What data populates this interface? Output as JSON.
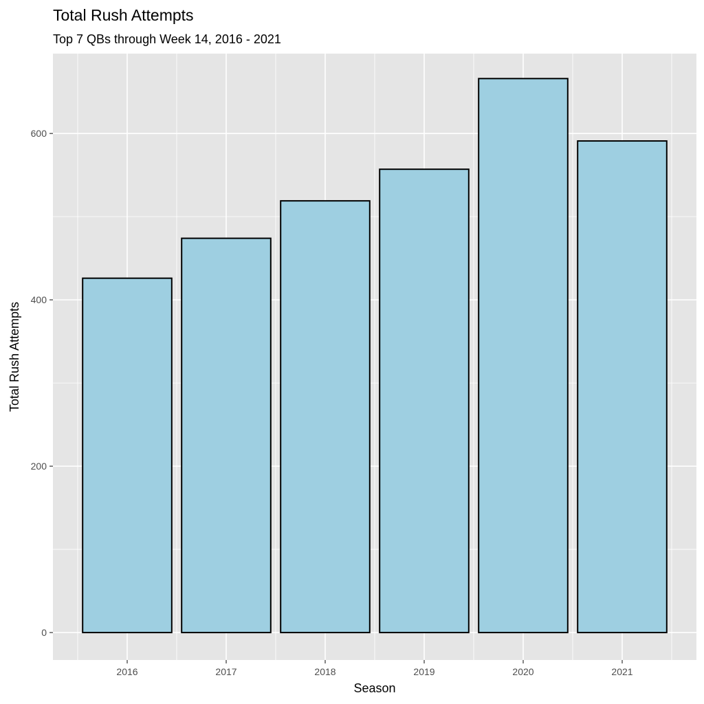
{
  "chart_data": {
    "type": "bar",
    "title": "Total Rush Attempts",
    "subtitle": "Top 7 QBs through Week 14, 2016 - 2021",
    "xlabel": "Season",
    "ylabel": "Total Rush Attempts",
    "categories": [
      "2016",
      "2017",
      "2018",
      "2019",
      "2020",
      "2021"
    ],
    "values": [
      426,
      474,
      519,
      557,
      666,
      591
    ],
    "ylim": [
      -33,
      696
    ],
    "y_ticks": [
      0,
      200,
      400,
      600
    ],
    "y_tick_labels": [
      "0",
      "200",
      "400",
      "600"
    ],
    "y_minor_ticks": [
      100,
      300,
      500
    ],
    "grid": true,
    "legend": "none",
    "colors": {
      "bar_fill": "#9ecfe1",
      "bar_stroke": "#000000",
      "panel_background": "#e5e5e5",
      "grid": "#ffffff"
    }
  }
}
